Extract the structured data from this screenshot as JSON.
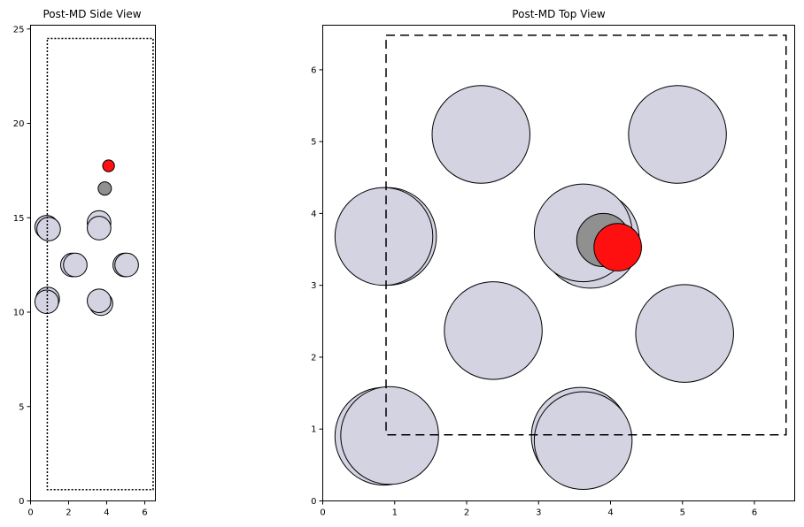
{
  "chart_data": [
    {
      "type": "scatter",
      "title": "Post-MD Side View",
      "xlim": [
        0,
        6.56
      ],
      "ylim": [
        0,
        25.2
      ],
      "xticks": [
        "0",
        "2",
        "4",
        "6"
      ],
      "yticks": [
        "0",
        "5",
        "10",
        "15",
        "20",
        "25"
      ],
      "cell_box": {
        "x": [
          0.88,
          6.44
        ],
        "y": [
          0.6,
          24.5
        ],
        "style": "dotted"
      },
      "atoms": [
        {
          "x": 0.85,
          "y": 14.5,
          "r": 0.62,
          "color": "#d3d3e2"
        },
        {
          "x": 0.95,
          "y": 14.4,
          "r": 0.62,
          "color": "#d3d3e2"
        },
        {
          "x": 3.6,
          "y": 14.75,
          "r": 0.62,
          "color": "#d3d3e2"
        },
        {
          "x": 3.6,
          "y": 14.45,
          "r": 0.62,
          "color": "#d3d3e2"
        },
        {
          "x": 2.2,
          "y": 12.5,
          "r": 0.62,
          "color": "#d3d3e2"
        },
        {
          "x": 2.35,
          "y": 12.5,
          "r": 0.62,
          "color": "#d3d3e2"
        },
        {
          "x": 4.95,
          "y": 12.5,
          "r": 0.62,
          "color": "#d3d3e2"
        },
        {
          "x": 5.05,
          "y": 12.5,
          "r": 0.62,
          "color": "#d3d3e2"
        },
        {
          "x": 0.9,
          "y": 10.7,
          "r": 0.62,
          "color": "#d3d3e2"
        },
        {
          "x": 0.85,
          "y": 10.55,
          "r": 0.62,
          "color": "#d3d3e2"
        },
        {
          "x": 3.7,
          "y": 10.45,
          "r": 0.62,
          "color": "#d3d3e2"
        },
        {
          "x": 3.6,
          "y": 10.6,
          "r": 0.62,
          "color": "#d3d3e2"
        },
        {
          "x": 3.9,
          "y": 16.55,
          "r": 0.35,
          "color": "#909090"
        },
        {
          "x": 4.1,
          "y": 17.75,
          "r": 0.31,
          "color": "#ff1010"
        }
      ]
    },
    {
      "type": "scatter",
      "title": "Post-MD Top View",
      "xlim": [
        0,
        6.56
      ],
      "ylim": [
        0,
        6.62
      ],
      "xticks": [
        "0",
        "1",
        "2",
        "3",
        "4",
        "5",
        "6"
      ],
      "yticks": [
        "0",
        "1",
        "2",
        "3",
        "4",
        "5",
        "6"
      ],
      "cell_box": {
        "x": [
          0.88,
          6.44
        ],
        "y": [
          0.92,
          6.48
        ],
        "style": "dashed"
      },
      "atoms": [
        {
          "x": 2.2,
          "y": 5.1,
          "r": 0.68,
          "color": "#d3d3e2"
        },
        {
          "x": 4.93,
          "y": 5.1,
          "r": 0.68,
          "color": "#d3d3e2"
        },
        {
          "x": 0.9,
          "y": 3.68,
          "r": 0.68,
          "color": "#d3d3e2"
        },
        {
          "x": 0.85,
          "y": 3.68,
          "r": 0.68,
          "color": "#d3d3e2"
        },
        {
          "x": 3.72,
          "y": 3.64,
          "r": 0.68,
          "color": "#d3d3e2"
        },
        {
          "x": 3.62,
          "y": 3.73,
          "r": 0.68,
          "color": "#d3d3e2"
        },
        {
          "x": 2.37,
          "y": 2.37,
          "r": 0.68,
          "color": "#d3d3e2"
        },
        {
          "x": 5.03,
          "y": 2.33,
          "r": 0.68,
          "color": "#d3d3e2"
        },
        {
          "x": 0.85,
          "y": 0.9,
          "r": 0.68,
          "color": "#d3d3e2"
        },
        {
          "x": 0.93,
          "y": 0.91,
          "r": 0.68,
          "color": "#d3d3e2"
        },
        {
          "x": 3.58,
          "y": 0.9,
          "r": 0.68,
          "color": "#d3d3e2"
        },
        {
          "x": 3.62,
          "y": 0.84,
          "r": 0.68,
          "color": "#d3d3e2"
        },
        {
          "x": 3.9,
          "y": 3.63,
          "r": 0.37,
          "color": "#909090"
        },
        {
          "x": 4.1,
          "y": 3.53,
          "r": 0.33,
          "color": "#ff1010"
        }
      ]
    }
  ]
}
